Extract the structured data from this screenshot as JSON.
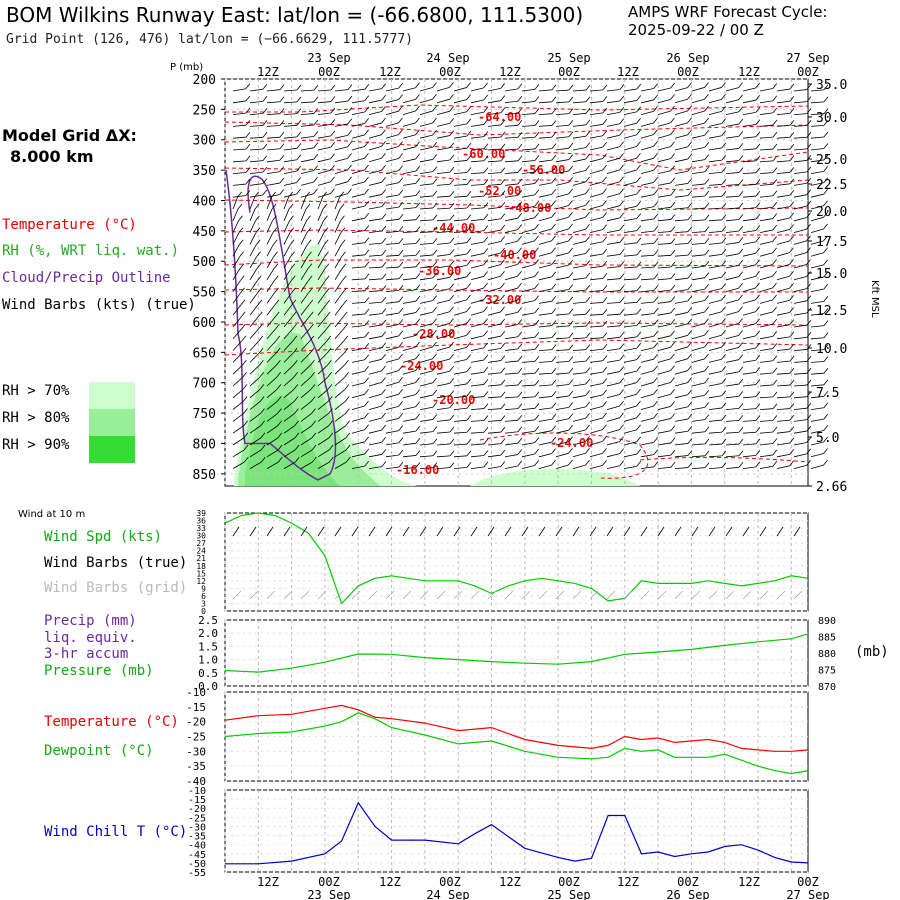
{
  "header": {
    "title": "BOM Wilkins Runway East:  lat/lon = (-66.6800, 111.5300)",
    "grid_point": "Grid Point (126, 476) lat/lon = (−66.6629, 111.5777)",
    "forecast_label": "AMPS WRF Forecast Cycle:",
    "forecast_cycle": "2025-09-22 / 00  Z"
  },
  "model_grid": {
    "label": "Model Grid ΔX:",
    "value": "8.000 km"
  },
  "legend_top": {
    "temperature": "Temperature (°C)",
    "rh": "RH (%, WRT liq. wat.)",
    "cloud": "Cloud/Precip Outline",
    "barbs": "Wind Barbs (kts) (true)",
    "rh70": "RH > 70%",
    "rh80": "RH > 80%",
    "rh90": "RH > 90%"
  },
  "colors": {
    "temperature": "#ff0000",
    "rh": "#22bb22",
    "cloud": "#6a2a9a",
    "dewpoint": "#00cc00",
    "windchill": "#0000cc",
    "rh70": "#ccffcc",
    "rh80": "#99ee99",
    "rh90": "#33dd33"
  },
  "time_axis": {
    "top_hours": [
      "12Z",
      "00Z",
      "12Z",
      "00Z",
      "12Z",
      "00Z",
      "12Z",
      "00Z",
      "12Z",
      "00Z"
    ],
    "dates": [
      {
        "label": "23 Sep",
        "at": 2
      },
      {
        "label": "24 Sep",
        "at": 4
      },
      {
        "label": "25 Sep",
        "at": 6
      },
      {
        "label": "26 Sep",
        "at": 8
      },
      {
        "label": "27 Sep",
        "at": 10
      }
    ]
  },
  "wind_label": "Wind at 10 m",
  "chart_data": [
    {
      "type": "heatmap",
      "name": "cross-section",
      "y_axis_label": "P (mb)",
      "right_axis_label": "Kft MSL",
      "pressure_ticks": [
        "200",
        "250",
        "300",
        "350",
        "400",
        "450",
        "500",
        "550",
        "600",
        "650",
        "700",
        "750",
        "800",
        "850"
      ],
      "height_ticks": [
        "35.0",
        "30.0",
        "25.0",
        "22.5",
        "20.0",
        "17.5",
        "15.0",
        "12.5",
        "10.0",
        "7.5",
        "5.0",
        "2.66"
      ],
      "temperature_contour_labels": [
        "-64.00",
        "-60.00",
        "-56.00",
        "-52.00",
        "-48.00",
        "-44.00",
        "-40.00",
        "-36.00",
        "-32.00",
        "-28.00",
        "-24.00",
        "-20.00",
        "-24.00",
        "-16.00"
      ]
    },
    {
      "type": "line",
      "name": "wind",
      "labels": {
        "spd": "Wind Spd (kts)",
        "barbs_true": "Wind Barbs (true)",
        "barbs_grid": "Wind Barbs (grid)"
      },
      "yticks": [
        "39",
        "36",
        "33",
        "30",
        "27",
        "24",
        "21",
        "18",
        "15",
        "12",
        "9",
        "6",
        "3",
        "0"
      ],
      "ylim": [
        0,
        39
      ],
      "x_hours": [
        0,
        6,
        12,
        18,
        24,
        30,
        36,
        42,
        48,
        54,
        60,
        66,
        72,
        78,
        84,
        90,
        96,
        102,
        108,
        114,
        120,
        126,
        132,
        138,
        144,
        150,
        156,
        162,
        168,
        174,
        180,
        186,
        192,
        198,
        204,
        210
      ],
      "values": [
        35,
        38,
        39,
        38,
        35,
        31,
        22,
        3,
        10,
        13,
        14,
        13,
        12,
        12,
        12,
        10,
        7,
        10,
        12,
        13,
        12,
        11,
        9,
        4,
        5,
        12,
        11,
        11,
        11,
        12,
        11,
        10,
        11,
        12,
        14,
        13
      ]
    },
    {
      "type": "line",
      "name": "precip-pressure",
      "labels": {
        "precip": "Precip (mm)",
        "precip2": "liq. equiv.",
        "precip3": "3-hr accum",
        "pressure": "Pressure (mb)",
        "unit": "(mb)"
      },
      "yticks_left": [
        "2.5",
        "2.0",
        "1.5",
        "1.0",
        "0.5",
        "0.0"
      ],
      "yticks_right": [
        "890",
        "885",
        "880",
        "875",
        "870"
      ],
      "ylim": [
        870,
        890
      ],
      "x_hours": [
        0,
        12,
        24,
        36,
        48,
        60,
        72,
        84,
        96,
        108,
        120,
        132,
        144,
        156,
        168,
        180,
        192,
        204,
        210
      ],
      "values": [
        874.7,
        874.2,
        875.4,
        877.2,
        879.7,
        879.6,
        878.6,
        878.0,
        877.4,
        876.9,
        876.6,
        877.4,
        879.6,
        880.3,
        881.1,
        882.3,
        883.4,
        884.3,
        885.8
      ]
    },
    {
      "type": "line",
      "name": "temperature",
      "labels": {
        "temp": "Temperature (°C)",
        "dew": "Dewpoint (°C)"
      },
      "yticks": [
        "-10",
        "-15",
        "-20",
        "-25",
        "-30",
        "-35",
        "-40"
      ],
      "ylim": [
        -40,
        -10
      ],
      "x_hours": [
        0,
        12,
        24,
        36,
        42,
        48,
        54,
        60,
        72,
        84,
        96,
        108,
        120,
        132,
        138,
        144,
        150,
        156,
        162,
        174,
        180,
        186,
        192,
        198,
        204,
        210
      ],
      "series": [
        {
          "name": "Temperature",
          "values": [
            -19.5,
            -18,
            -17.5,
            -15.5,
            -14.5,
            -16,
            -18.5,
            -19,
            -20.5,
            -23,
            -22,
            -26,
            -28,
            -29,
            -28,
            -25,
            -26,
            -25.5,
            -27,
            -26,
            -27,
            -29,
            -29.5,
            -30,
            -30,
            -29.5
          ]
        },
        {
          "name": "Dewpoint",
          "values": [
            -25,
            -24,
            -23.5,
            -21.5,
            -20,
            -17,
            -19,
            -22,
            -24.5,
            -27.5,
            -26.5,
            -30,
            -32,
            -32.5,
            -32,
            -29,
            -30,
            -29.5,
            -32,
            -32,
            -31,
            -33,
            -35,
            -36.5,
            -37.5,
            -36.5
          ]
        }
      ]
    },
    {
      "type": "line",
      "name": "windchill",
      "labels": {
        "wc": "Wind Chill T (°C)"
      },
      "yticks": [
        "-10",
        "-15",
        "-20",
        "-25",
        "-30",
        "-35",
        "-40",
        "-45",
        "-50",
        "-55"
      ],
      "ylim": [
        -55,
        -10
      ],
      "x_hours": [
        0,
        12,
        24,
        36,
        42,
        48,
        54,
        60,
        72,
        84,
        90,
        96,
        108,
        120,
        126,
        132,
        138,
        144,
        150,
        156,
        162,
        168,
        174,
        180,
        186,
        192,
        198,
        204,
        210
      ],
      "values": [
        -50.5,
        -50.5,
        -49,
        -45,
        -38,
        -17,
        -30,
        -37.5,
        -37.5,
        -39.5,
        -34,
        -29,
        -42,
        -47,
        -49,
        -47.5,
        -24,
        -24,
        -45,
        -44,
        -46.5,
        -45,
        -44,
        -41,
        -40,
        -43,
        -47,
        -49.5,
        -50
      ]
    }
  ],
  "bottom_axis": {
    "hours": [
      "12Z",
      "00Z",
      "12Z",
      "00Z",
      "12Z",
      "00Z",
      "12Z",
      "00Z",
      "12Z",
      "00Z"
    ],
    "dates": [
      "23 Sep",
      "24 Sep",
      "25 Sep",
      "26 Sep",
      "27 Sep"
    ]
  }
}
